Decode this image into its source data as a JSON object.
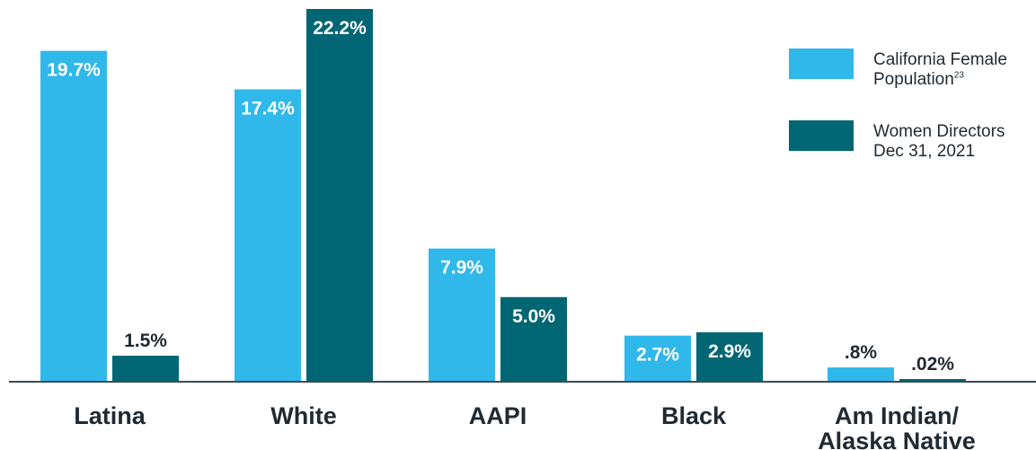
{
  "chart_data": {
    "type": "bar",
    "categories": [
      "Latina",
      "White",
      "AAPI",
      "Black",
      "Am Indian/\nAlaska Native"
    ],
    "series": [
      {
        "name": "California Female Population",
        "legend_line1": "California Female",
        "legend_line2": "Population",
        "legend_sup": "23",
        "color": "#30b8ea",
        "values": [
          19.7,
          17.4,
          7.9,
          2.7,
          0.8
        ],
        "labels": [
          "19.7%",
          "17.4%",
          "7.9%",
          "2.7%",
          ".8%"
        ]
      },
      {
        "name": "Women Directors Dec 31, 2021",
        "legend_line1": "Women Directors",
        "legend_line2": "Dec 31, 2021",
        "legend_sup": "",
        "color": "#006674",
        "values": [
          1.5,
          22.2,
          5.0,
          2.9,
          0.02
        ],
        "labels": [
          "1.5%",
          "22.2%",
          "5.0%",
          "2.9%",
          ".02%"
        ]
      }
    ],
    "ylim": [
      0,
      22.2
    ],
    "grid": false,
    "legend_position": "top-right",
    "axis_color": "#3d4b57"
  }
}
